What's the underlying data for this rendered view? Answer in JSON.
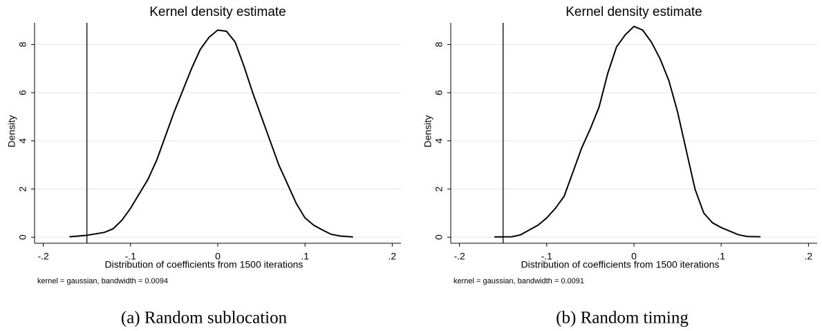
{
  "chart_data": [
    {
      "type": "line",
      "title": "Kernel density estimate",
      "xlabel": "Distribution of coefficients from 1500 iterations",
      "ylabel": "Density",
      "note": "kernel = gaussian, bandwidth = 0.0094",
      "caption": "(a) Random sublocation",
      "color": "#000000",
      "grid": true,
      "vline": -0.15,
      "x": [
        -0.17,
        -0.15,
        -0.13,
        -0.12,
        -0.11,
        -0.1,
        -0.09,
        -0.08,
        -0.07,
        -0.06,
        -0.05,
        -0.04,
        -0.03,
        -0.02,
        -0.01,
        0,
        0.01,
        0.02,
        0.03,
        0.04,
        0.05,
        0.06,
        0.07,
        0.08,
        0.09,
        0.1,
        0.11,
        0.12,
        0.13,
        0.14,
        0.155
      ],
      "values": [
        0.02,
        0.08,
        0.2,
        0.35,
        0.7,
        1.2,
        1.8,
        2.4,
        3.2,
        4.2,
        5.2,
        6.1,
        7.0,
        7.8,
        8.3,
        8.6,
        8.55,
        8.1,
        7.1,
        6.0,
        5.0,
        4.0,
        3.0,
        2.2,
        1.4,
        0.8,
        0.5,
        0.3,
        0.12,
        0.05,
        0.01
      ],
      "xlim": [
        -0.21,
        0.21
      ],
      "ylim": [
        -0.25,
        8.9
      ],
      "xticks": [
        {
          "value": -0.2,
          "label": "-.2"
        },
        {
          "value": -0.1,
          "label": "-.1"
        },
        0,
        {
          "value": 0.1,
          "label": ".1"
        },
        {
          "value": 0.2,
          "label": ".2"
        }
      ],
      "yticks": [
        0,
        2,
        4,
        6,
        8
      ]
    },
    {
      "type": "line",
      "title": "Kernel density estimate",
      "xlabel": "Distribution of coefficients from 1500 iterations",
      "ylabel": "Density",
      "note": "kernel = gaussian, bandwidth = 0.0091",
      "caption": "(b) Random timing",
      "color": "#000000",
      "grid": true,
      "vline": -0.15,
      "x": [
        -0.16,
        -0.14,
        -0.13,
        -0.12,
        -0.11,
        -0.1,
        -0.09,
        -0.08,
        -0.07,
        -0.06,
        -0.05,
        -0.04,
        -0.03,
        -0.02,
        -0.01,
        0,
        0.01,
        0.02,
        0.03,
        0.04,
        0.05,
        0.06,
        0.07,
        0.08,
        0.09,
        0.1,
        0.11,
        0.12,
        0.13,
        0.145
      ],
      "values": [
        0.01,
        0.02,
        0.1,
        0.3,
        0.5,
        0.8,
        1.2,
        1.7,
        2.7,
        3.7,
        4.5,
        5.4,
        6.8,
        7.9,
        8.4,
        8.75,
        8.6,
        8.1,
        7.4,
        6.5,
        5.2,
        3.6,
        2.0,
        1.0,
        0.6,
        0.4,
        0.25,
        0.1,
        0.03,
        0.02
      ],
      "xlim": [
        -0.21,
        0.21
      ],
      "ylim": [
        -0.25,
        8.9
      ],
      "xticks": [
        {
          "value": -0.2,
          "label": "-.2"
        },
        {
          "value": -0.1,
          "label": "-.1"
        },
        0,
        {
          "value": 0.1,
          "label": ".1"
        },
        {
          "value": 0.2,
          "label": ".2"
        }
      ],
      "yticks": [
        0,
        2,
        4,
        6,
        8
      ]
    }
  ]
}
